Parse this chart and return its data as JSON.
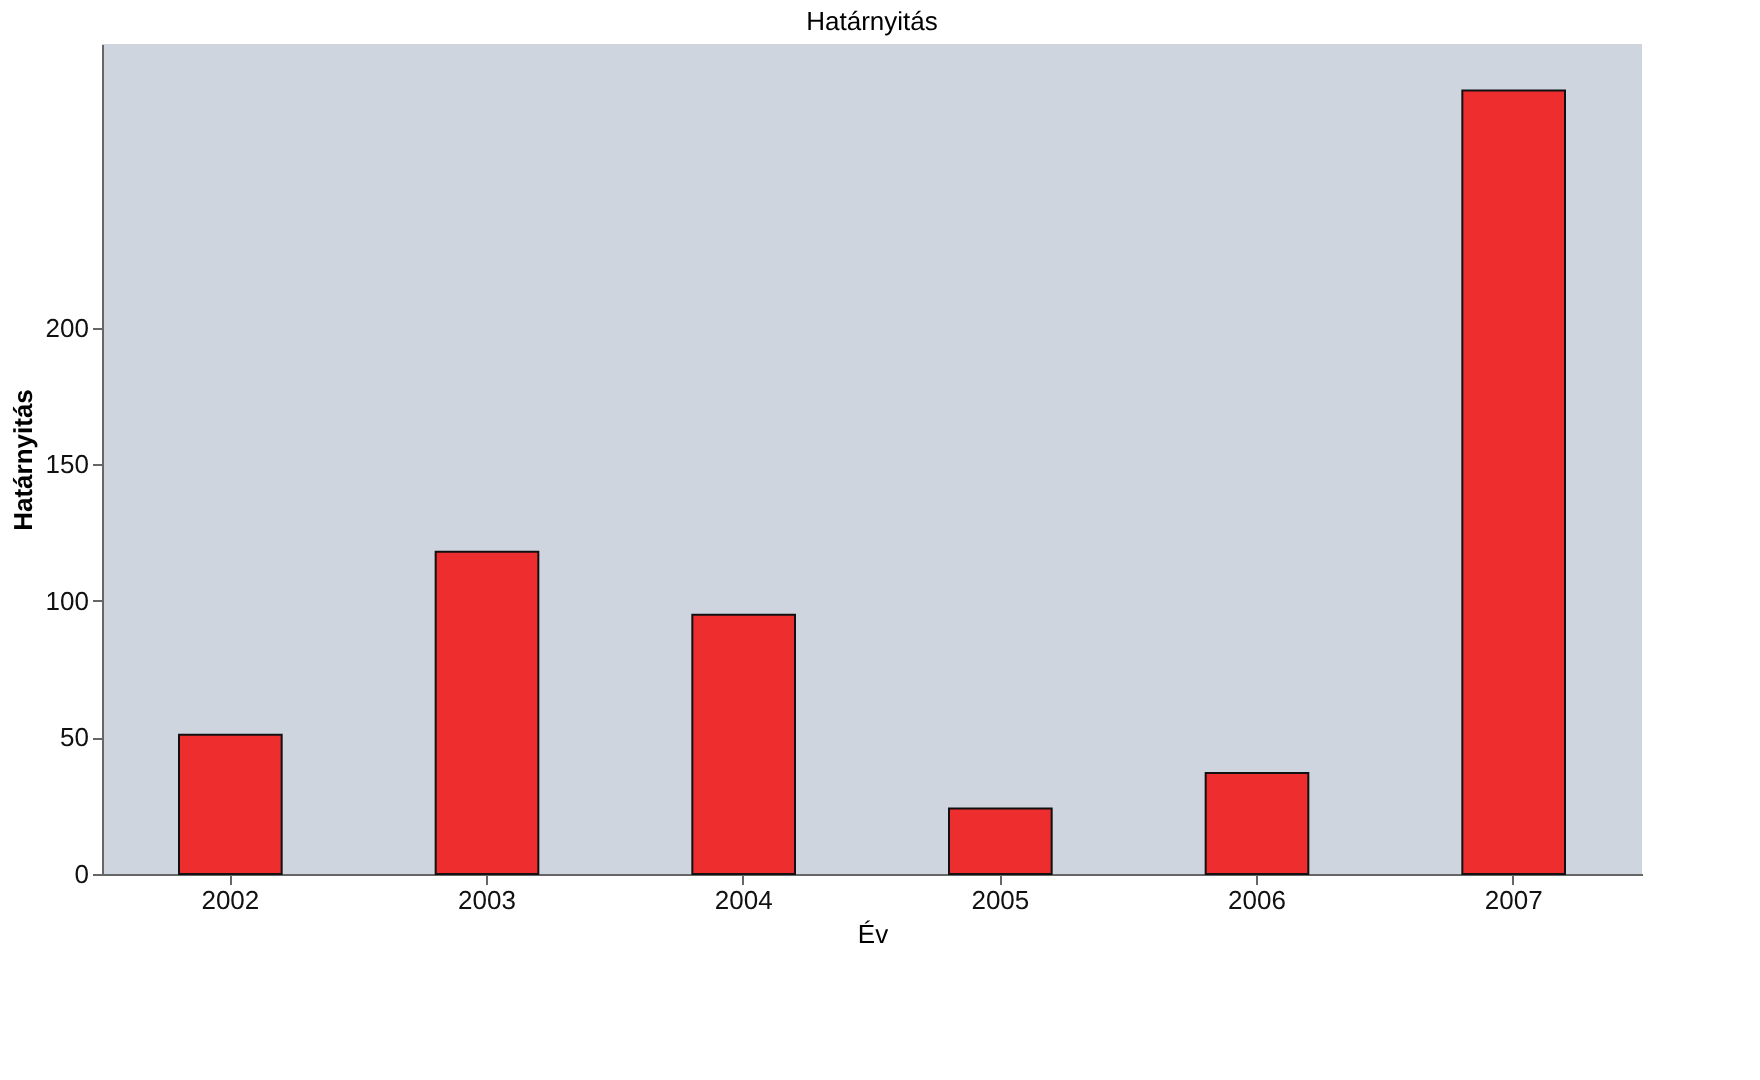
{
  "chart_data": {
    "type": "bar",
    "title": "Határnyitás",
    "xlabel": "Év",
    "ylabel": "Határnyitás",
    "categories": [
      "2002",
      "2003",
      "2004",
      "2005",
      "2006",
      "2007"
    ],
    "values": [
      51,
      118,
      95,
      24,
      37,
      287
    ],
    "color": "#ee2e2e",
    "ylim": [
      0,
      304
    ],
    "yticks": [
      0,
      50,
      100,
      150,
      200
    ],
    "grid": false
  }
}
